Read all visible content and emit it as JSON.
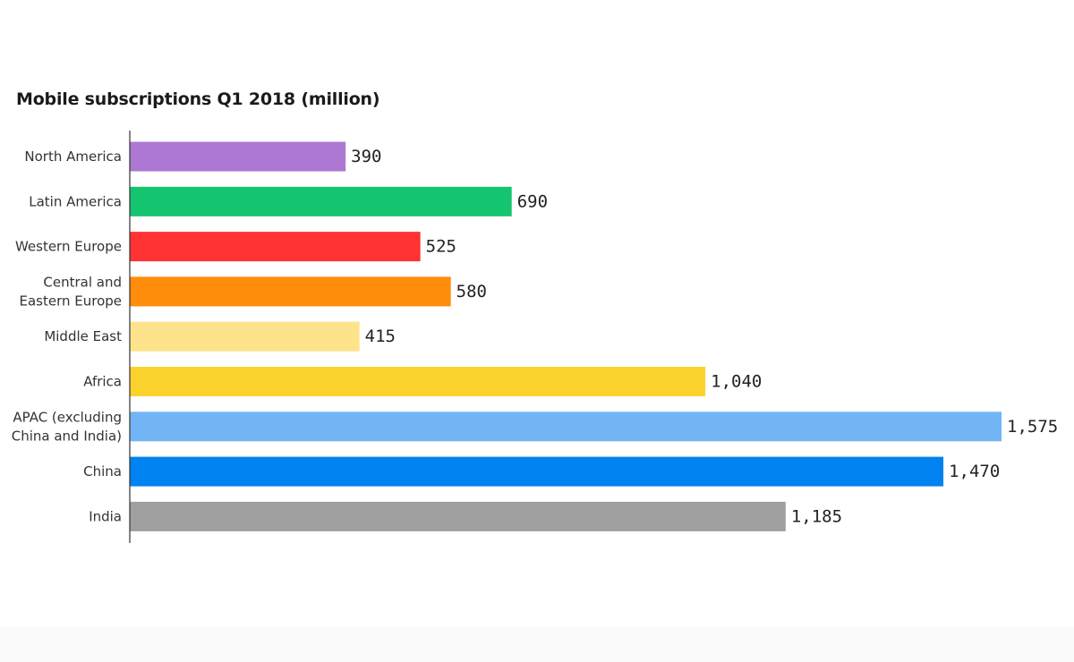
{
  "chart_data": {
    "type": "bar",
    "orientation": "horizontal",
    "title": "Mobile subscriptions Q1 2018 (million)",
    "xlabel": "",
    "ylabel": "",
    "categories": [
      "North America",
      "Latin America",
      "Western Europe",
      "Central and Eastern Europe",
      "Middle East",
      "Africa",
      "APAC (excluding China and India)",
      "China",
      "India"
    ],
    "category_label_lines": [
      [
        "North America"
      ],
      [
        "Latin America"
      ],
      [
        "Western Europe"
      ],
      [
        "Central and",
        "Eastern Europe"
      ],
      [
        "Middle East"
      ],
      [
        "Africa"
      ],
      [
        "APAC (excluding",
        "China and India)"
      ],
      [
        "China"
      ],
      [
        "India"
      ]
    ],
    "values": [
      390,
      690,
      525,
      580,
      415,
      1040,
      1575,
      1470,
      1185
    ],
    "value_labels": [
      "390",
      "690",
      "525",
      "580",
      "415",
      "1,040",
      "1,575",
      "1,470",
      "1,185"
    ],
    "colors": [
      "#ad78d3",
      "#14c46e",
      "#ff3333",
      "#ff8c0a",
      "#fde38b",
      "#fad22d",
      "#72b5f5",
      "#0082f0",
      "#a0a0a0"
    ],
    "xlim": [
      0,
      1575
    ],
    "grid": false,
    "legend": "none"
  }
}
